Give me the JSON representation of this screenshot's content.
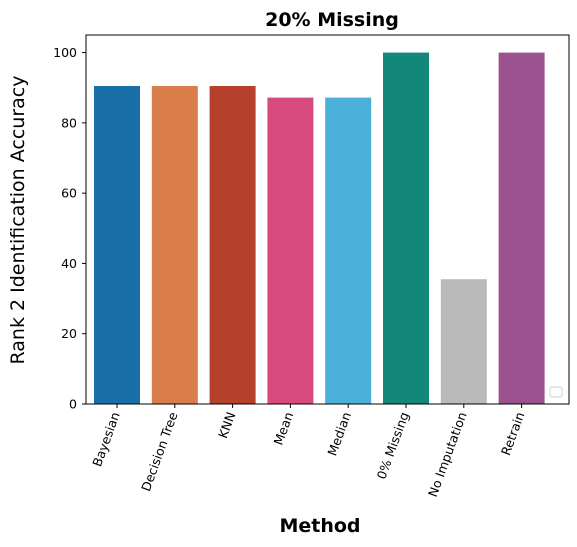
{
  "chart_data": {
    "type": "bar",
    "title": "20% Missing",
    "xlabel": "Method",
    "ylabel": "Rank 2 Identification Accuracy",
    "categories": [
      "Bayesian",
      "Decision Tree",
      "KNN",
      "Mean",
      "Median",
      "0% Missing",
      "No Imputation",
      "Retrain"
    ],
    "values": [
      90.5,
      90.5,
      90.5,
      87.2,
      87.2,
      100,
      35.5,
      100
    ],
    "colors": [
      "#1a6fa8",
      "#d97d4a",
      "#b5402b",
      "#d84b7e",
      "#4bb0d9",
      "#14877b",
      "#bababa",
      "#9b528f"
    ],
    "ylim": [
      0,
      105
    ],
    "yticks": [
      0,
      20,
      40,
      60,
      80,
      100
    ],
    "grid": false,
    "legend": "lower-right (empty)"
  }
}
